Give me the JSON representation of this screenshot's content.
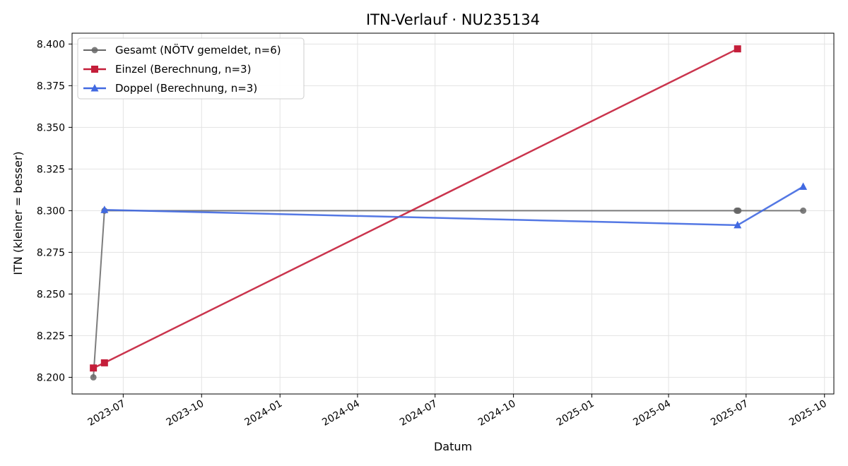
{
  "chart_data": {
    "type": "line",
    "title": "ITN-Verlauf · NU235134",
    "xlabel": "Datum",
    "ylabel": "ITN  (kleiner = besser)",
    "xlim": [
      "2023-05-02",
      "2025-10-12"
    ],
    "ylim": [
      8.19,
      8.4065
    ],
    "x_ticks": [
      "2023-07-01",
      "2023-10-01",
      "2024-01-01",
      "2024-04-01",
      "2024-07-01",
      "2024-10-01",
      "2025-01-01",
      "2025-04-01",
      "2025-07-01",
      "2025-10-01"
    ],
    "x_tick_labels": [
      "2023-07",
      "2023-10",
      "2024-01",
      "2024-04",
      "2024-07",
      "2024-10",
      "2025-01",
      "2025-04",
      "2025-07",
      "2025-10"
    ],
    "y_ticks": [
      8.2,
      8.225,
      8.25,
      8.275,
      8.3,
      8.325,
      8.35,
      8.375,
      8.4
    ],
    "y_tick_labels": [
      "8.200",
      "8.225",
      "8.250",
      "8.275",
      "8.300",
      "8.325",
      "8.350",
      "8.375",
      "8.400"
    ],
    "grid": true,
    "legend_position": "top-left",
    "series": [
      {
        "name": "Gesamt (NÖTV gemeldet, n=6)",
        "color": "#666666",
        "marker": "circle",
        "points": [
          {
            "x": "2023-05-27",
            "y": 8.2
          },
          {
            "x": "2023-06-09",
            "y": 8.3
          },
          {
            "x": "2025-06-20",
            "y": 8.3
          },
          {
            "x": "2025-06-21",
            "y": 8.3
          },
          {
            "x": "2025-06-22",
            "y": 8.3
          },
          {
            "x": "2025-09-06",
            "y": 8.3
          }
        ]
      },
      {
        "name": "Einzel (Berechnung, n=3)",
        "color": "#c41e3a",
        "marker": "square",
        "points": [
          {
            "x": "2023-05-27",
            "y": 8.2056
          },
          {
            "x": "2023-06-09",
            "y": 8.2087
          },
          {
            "x": "2025-06-21",
            "y": 8.3971
          }
        ]
      },
      {
        "name": "Doppel (Berechnung, n=3)",
        "color": "#4169e1",
        "marker": "triangle",
        "points": [
          {
            "x": "2023-06-09",
            "y": 8.3005
          },
          {
            "x": "2025-06-21",
            "y": 8.2913
          },
          {
            "x": "2025-09-06",
            "y": 8.3144
          }
        ]
      }
    ]
  }
}
